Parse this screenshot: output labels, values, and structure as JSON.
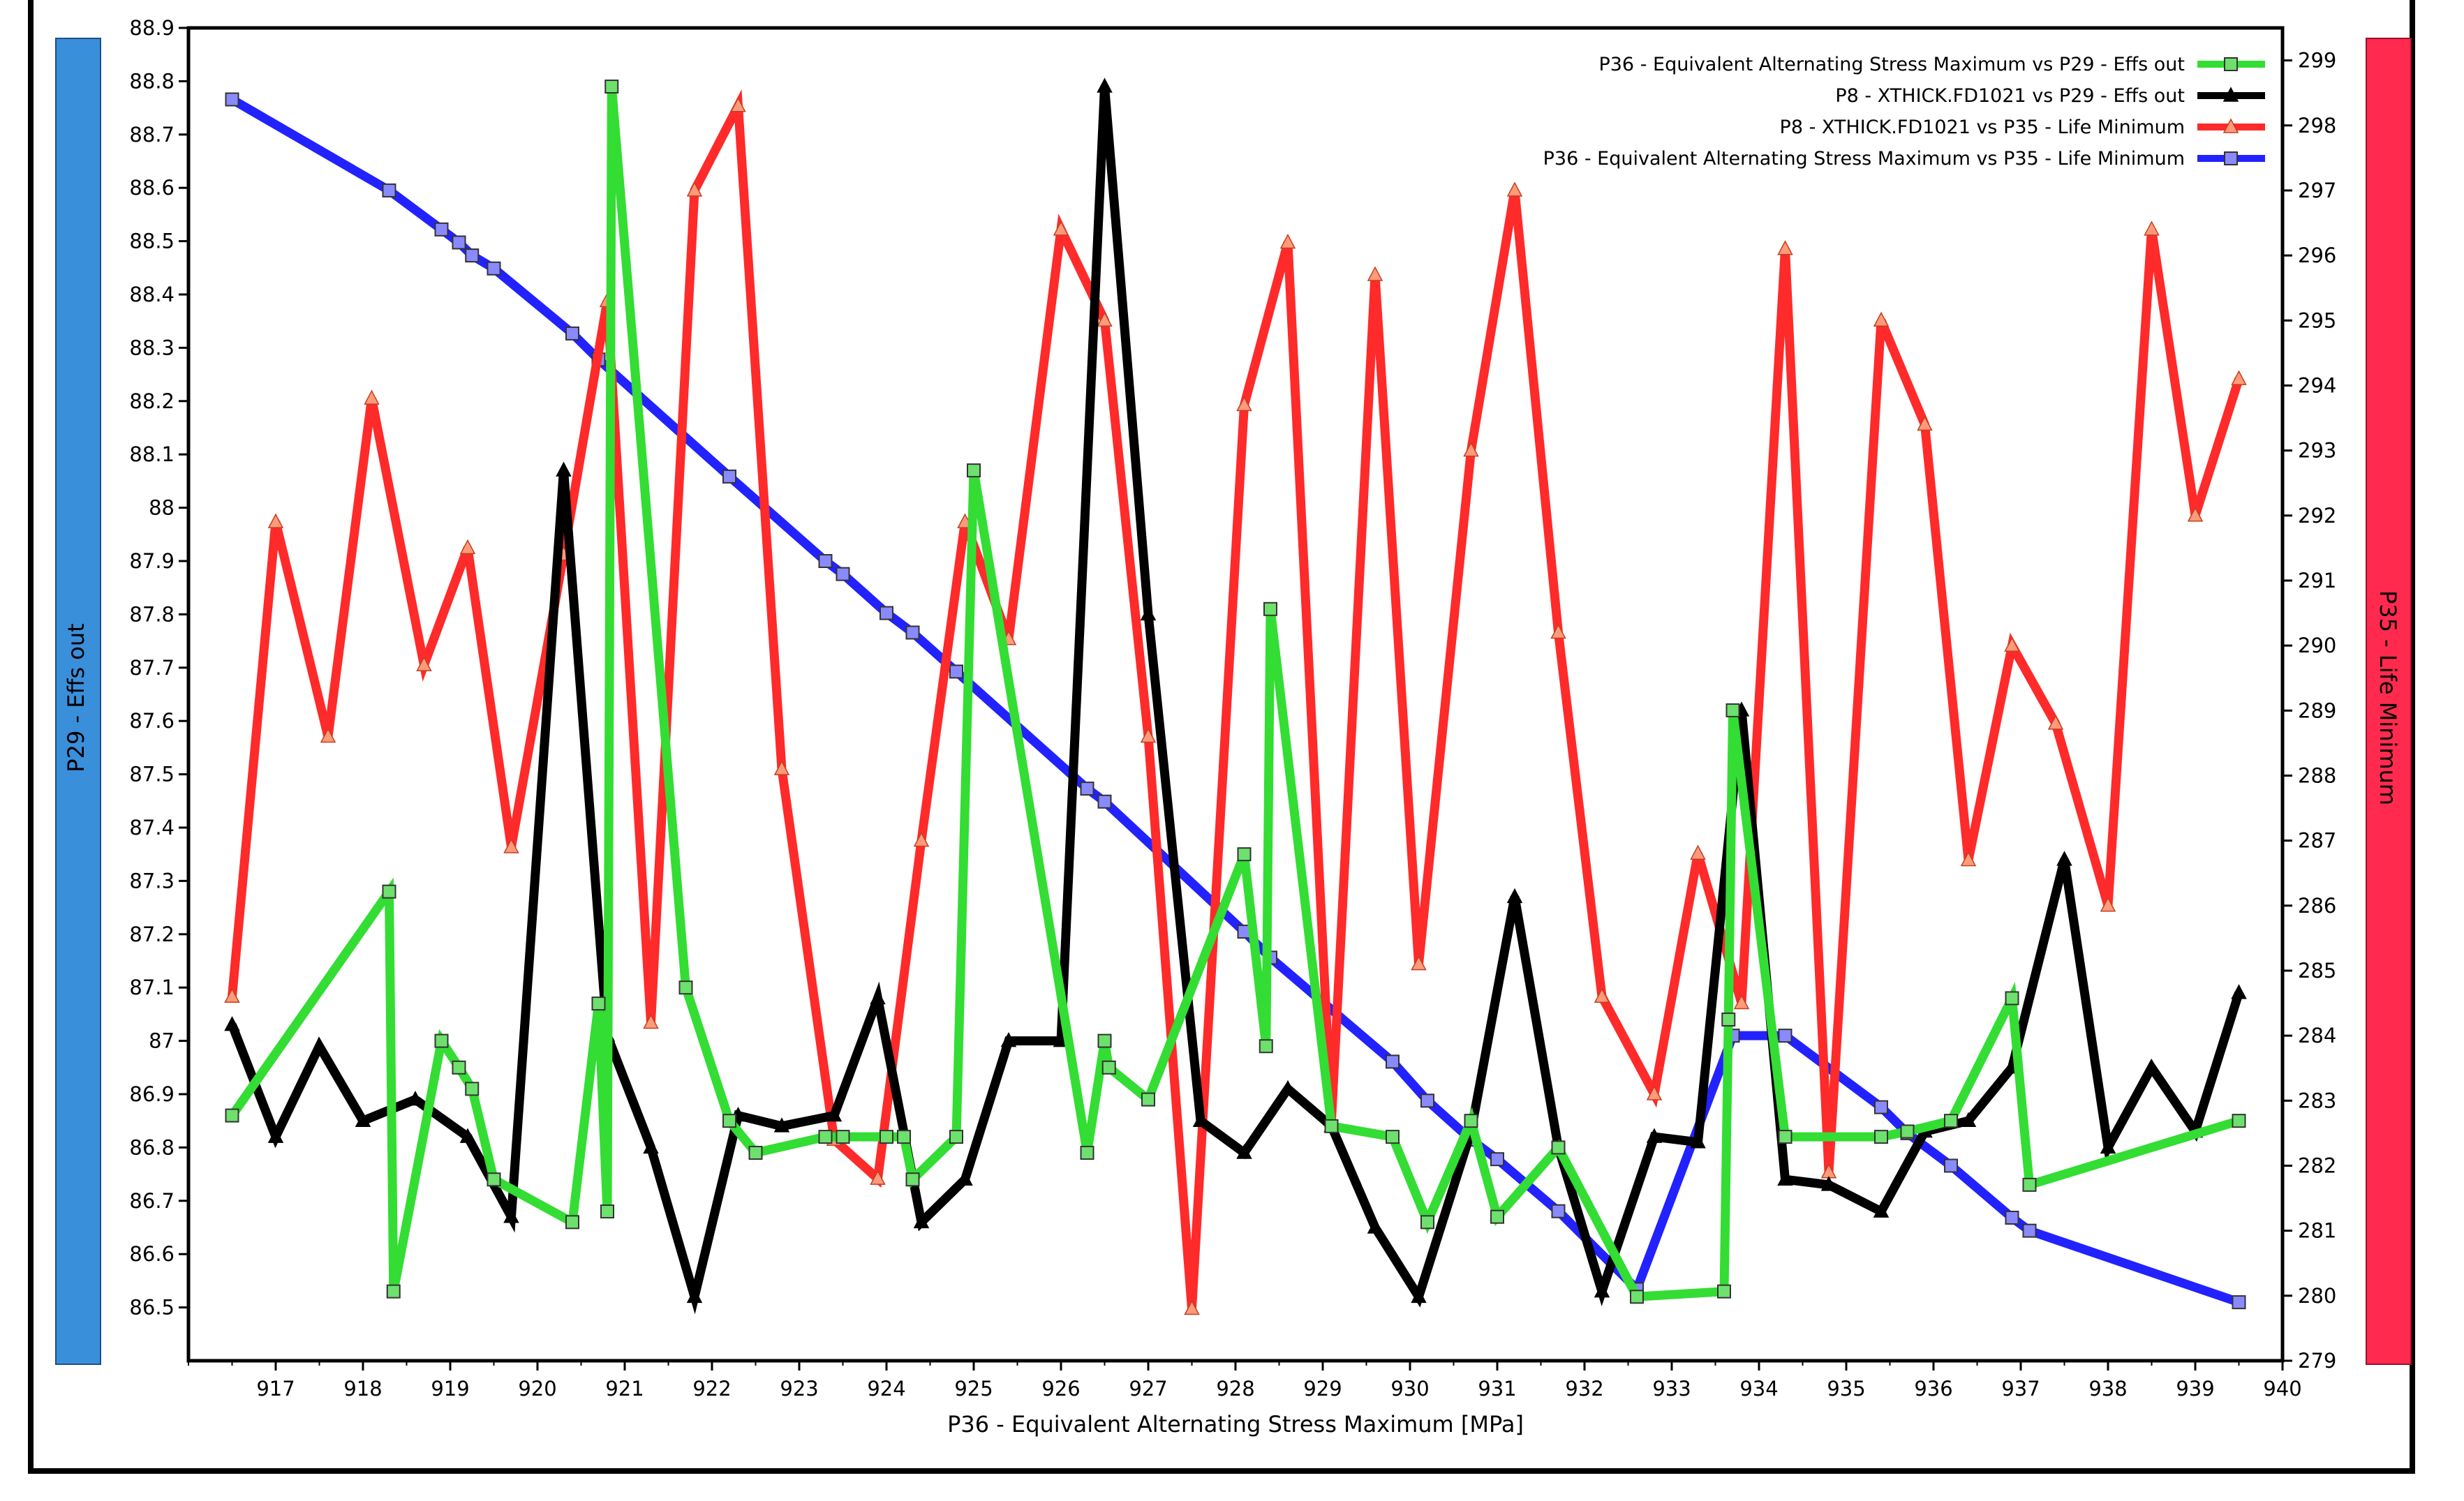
{
  "chart_data": {
    "type": "line",
    "xlabel": "P36 - Equivalent Alternating Stress Maximum  [MPa]",
    "ylabel_left": "P29 - Effs out",
    "ylabel_right": "P35 - Life Minimum",
    "xlim": [
      916,
      940
    ],
    "ylim_left": [
      86.4,
      88.9
    ],
    "ylim_right": [
      279,
      299.5
    ],
    "x_ticks": [
      "917",
      "918",
      "919",
      "920",
      "921",
      "922",
      "923",
      "924",
      "925",
      "926",
      "927",
      "928",
      "929",
      "930",
      "931",
      "932",
      "933",
      "934",
      "935",
      "936",
      "937",
      "938",
      "939",
      "940"
    ],
    "y_left_ticks": [
      "86.5",
      "86.6",
      "86.7",
      "86.8",
      "86.9",
      "87",
      "87.1",
      "87.2",
      "87.3",
      "87.4",
      "87.5",
      "87.6",
      "87.7",
      "87.8",
      "87.9",
      "88",
      "88.1",
      "88.2",
      "88.3",
      "88.4",
      "88.5",
      "88.6",
      "88.7",
      "88.8",
      "88.9"
    ],
    "y_right_ticks": [
      "279",
      "280",
      "281",
      "282",
      "283",
      "284",
      "285",
      "286",
      "287",
      "288",
      "289",
      "290",
      "291",
      "292",
      "293",
      "294",
      "295",
      "296",
      "297",
      "298",
      "299"
    ],
    "left_axis_color": "#3a8fdb",
    "right_axis_color": "#ff2a4e",
    "series": [
      {
        "name": "P36 - Equivalent Alternating Stress Maximum vs P29 - Effs out",
        "color": "#33dd33",
        "marker": "square",
        "axis": "left",
        "x": [
          916.5,
          918.3,
          918.35,
          918.9,
          919.1,
          919.25,
          919.5,
          920.4,
          920.7,
          920.8,
          920.85,
          921.7,
          922.2,
          922.5,
          923.3,
          923.5,
          924.0,
          924.2,
          924.3,
          924.8,
          925.0,
          926.3,
          926.5,
          926.55,
          927.0,
          928.1,
          928.35,
          928.4,
          929.1,
          929.8,
          930.2,
          930.7,
          931.0,
          931.7,
          932.6,
          933.6,
          933.65,
          933.7,
          934.3,
          935.4,
          935.7,
          936.2,
          936.9,
          937.1,
          939.5
        ],
        "y": [
          86.86,
          87.28,
          86.53,
          87.0,
          86.95,
          86.91,
          86.74,
          86.66,
          87.07,
          86.68,
          88.79,
          87.1,
          86.85,
          86.79,
          86.82,
          86.82,
          86.82,
          86.82,
          86.74,
          86.82,
          88.07,
          86.79,
          87.0,
          86.95,
          86.89,
          87.35,
          86.99,
          87.81,
          86.84,
          86.82,
          86.66,
          86.85,
          86.67,
          86.8,
          86.52,
          86.53,
          87.04,
          87.62,
          86.82,
          86.82,
          86.83,
          86.85,
          87.08,
          86.73,
          86.85
        ]
      },
      {
        "name": "P8 - XTHICK.FD1021 vs P29 - Effs out",
        "color": "#000000",
        "marker": "triangle",
        "axis": "left",
        "x": [
          916.5,
          917.0,
          917.5,
          918.0,
          918.6,
          919.2,
          919.7,
          920.3,
          920.8,
          921.3,
          921.8,
          922.3,
          922.8,
          923.4,
          923.9,
          924.4,
          924.9,
          925.4,
          926.0,
          926.5,
          927.0,
          927.6,
          928.1,
          928.6,
          929.1,
          929.6,
          930.1,
          930.7,
          931.2,
          931.7,
          932.2,
          932.8,
          933.3,
          933.8,
          934.3,
          934.8,
          935.4,
          935.9,
          936.4,
          936.9,
          937.5,
          938.0,
          938.5,
          939.0,
          939.5
        ],
        "y": [
          87.03,
          86.82,
          86.99,
          86.85,
          86.89,
          86.82,
          86.67,
          88.07,
          87.01,
          86.8,
          86.52,
          86.86,
          86.84,
          86.86,
          87.08,
          86.66,
          86.74,
          87.0,
          87.0,
          88.79,
          87.8,
          86.85,
          86.79,
          86.91,
          86.84,
          86.65,
          86.52,
          86.83,
          87.27,
          86.8,
          86.53,
          86.82,
          86.81,
          87.62,
          86.74,
          86.73,
          86.68,
          86.83,
          86.85,
          86.95,
          87.34,
          86.8,
          86.95,
          86.83,
          87.09
        ]
      },
      {
        "name": "P8 - XTHICK.FD1021 vs P35 - Life Minimum",
        "color": "#ff2a2a",
        "marker": "triangle",
        "axis": "right",
        "x": [
          916.5,
          917.0,
          917.6,
          918.1,
          918.7,
          919.2,
          919.7,
          920.3,
          920.8,
          921.3,
          921.8,
          922.3,
          922.8,
          923.4,
          923.9,
          924.4,
          924.9,
          925.4,
          926.0,
          926.5,
          927.0,
          927.5,
          928.1,
          928.6,
          929.1,
          929.6,
          930.1,
          930.7,
          931.2,
          931.7,
          932.2,
          932.8,
          933.3,
          933.8,
          934.3,
          934.8,
          935.4,
          935.9,
          936.4,
          936.9,
          937.4,
          938.0,
          938.5,
          939.0,
          939.5
        ],
        "y": [
          284.6,
          291.9,
          288.6,
          293.8,
          289.7,
          291.5,
          286.9,
          291.4,
          295.3,
          284.2,
          297.0,
          298.3,
          288.1,
          282.4,
          281.8,
          287.0,
          291.9,
          290.1,
          296.4,
          295.0,
          288.6,
          279.8,
          293.7,
          296.2,
          282.7,
          295.7,
          285.1,
          293.0,
          297.0,
          290.2,
          284.6,
          283.1,
          286.8,
          284.5,
          296.1,
          281.9,
          295.0,
          293.4,
          286.7,
          290.0,
          288.8,
          286.0,
          296.4,
          292.0,
          294.1
        ]
      },
      {
        "name": "P36 - Equivalent Alternating Stress Maximum vs P35 - Life Minimum",
        "color": "#2222ff",
        "marker": "square",
        "axis": "right",
        "x": [
          916.5,
          918.3,
          918.9,
          919.1,
          919.25,
          919.5,
          920.4,
          920.7,
          922.2,
          923.3,
          923.5,
          924.0,
          924.3,
          924.8,
          926.3,
          926.5,
          928.1,
          928.4,
          929.8,
          930.2,
          930.7,
          931.0,
          931.7,
          932.6,
          933.7,
          934.3,
          935.4,
          935.7,
          936.2,
          936.9,
          937.1,
          939.5
        ],
        "y": [
          298.4,
          297.0,
          296.4,
          296.2,
          296.0,
          295.8,
          294.8,
          294.4,
          292.6,
          291.3,
          291.1,
          290.5,
          290.2,
          289.6,
          287.8,
          287.6,
          285.6,
          285.2,
          283.6,
          283.0,
          282.4,
          282.1,
          281.3,
          280.1,
          284.0,
          284.0,
          282.9,
          282.5,
          282.0,
          281.2,
          281.0,
          279.9
        ]
      }
    ]
  }
}
